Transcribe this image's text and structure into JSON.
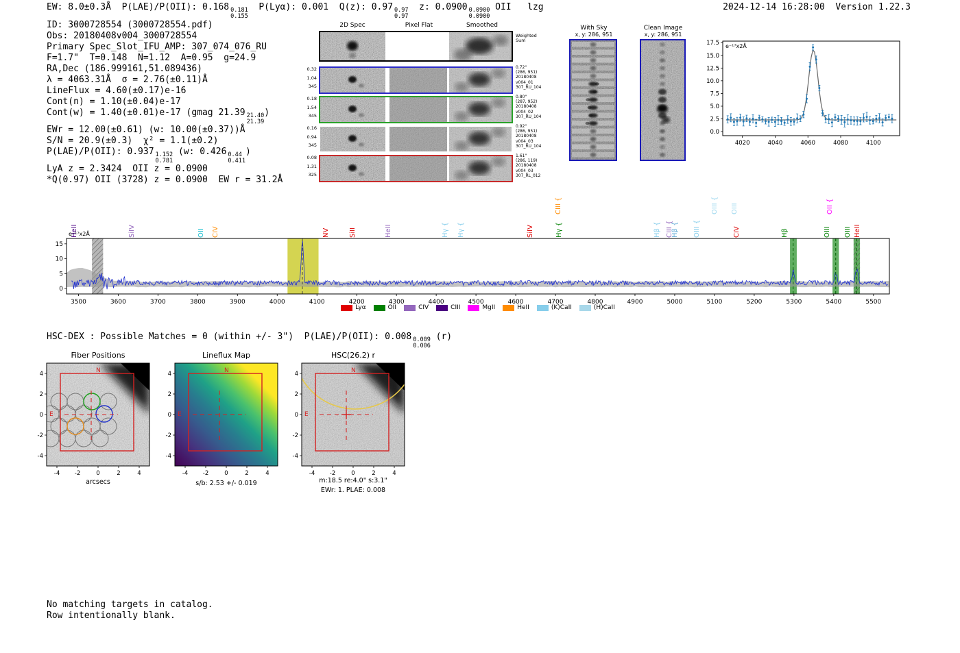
{
  "header": {
    "segments": [
      {
        "text": "EW: 8.0±0.3Å  P(LAE)/P(OII): 0.168"
      },
      {
        "sup": "0.181",
        "sub": "0.155"
      },
      {
        "text": "  P(Lyα): 0.001  Q(z): 0.97"
      },
      {
        "sup": "0.97",
        "sub": "0.97"
      },
      {
        "text": "  z: 0.0900"
      },
      {
        "sup": "0.0900",
        "sub": "0.0900"
      },
      {
        "text": " OII   lzg"
      }
    ],
    "timestamp": "2024-12-14 16:28:00  Version 1.22.3"
  },
  "info": {
    "lines": [
      [
        {
          "text": "ID: 3000728554 (3000728554.pdf)"
        }
      ],
      [
        {
          "text": "Obs: 20180408v004_3000728554"
        }
      ],
      [
        {
          "text": "Primary Spec_Slot_IFU_AMP: 307_074_076_RU"
        }
      ],
      [
        {
          "text": "F=1.7\"  T=0.148  N=1.12  A=0.95  g=24.9"
        }
      ],
      [
        {
          "text": "RA,Dec (186.999161,51.089436)"
        }
      ],
      [
        {
          "text": "λ = 4063.31Å  σ = 2.76(±0.11)Å"
        }
      ],
      [
        {
          "text": "LineFlux = 4.60(±0.17)e-16"
        }
      ],
      [
        {
          "text": "Cont(n) = 1.10(±0.04)e-17"
        }
      ],
      [
        {
          "text": "Cont(w) = 1.40(±0.01)e-17 (gmag 21.39"
        },
        {
          "sup": "21.40",
          "sub": "21.39"
        },
        {
          "text": ")"
        }
      ],
      [
        {
          "text": "EWr = 12.00(±0.61) (w: 10.00(±0.37))Å"
        }
      ],
      [
        {
          "text": "S/N = 20.9(±0.3)  χ² = 1.1(±0.2)"
        }
      ],
      [
        {
          "text": "P(LAE)/P(OII): 0.937"
        },
        {
          "sup": "1.152",
          "sub": "0.781"
        },
        {
          "text": " (w: 0.426"
        },
        {
          "sup": "0.44",
          "sub": "0.411"
        },
        {
          "text": ")"
        }
      ],
      [
        {
          "text": "LyA z = 2.3424  OII z = 0.0900"
        }
      ],
      [
        {
          "text": "*Q(0.97) OII (3728) z = 0.0900  EW r = 31.2Å"
        }
      ]
    ]
  },
  "cutouts_2d": {
    "col_headers": [
      "2D Spec",
      "Pixel Flat",
      "Smoothed"
    ],
    "weighted_label_1": "Weighted",
    "weighted_label_2": "Sum",
    "rows": [
      {
        "left": [
          "0.32",
          "1.04",
          "345"
        ],
        "border": "#2a2ac8",
        "right": [
          "0.72\"",
          "(286, 951)",
          "20180408",
          "v004_01",
          "307_RU_104"
        ]
      },
      {
        "left": [
          "0.18",
          "1.54",
          "345"
        ],
        "border": "#2aa22a",
        "right": [
          "0.80\"",
          "(287, 952)",
          "20180408",
          "v004_02",
          "307_RU_104"
        ]
      },
      {
        "left": [
          "0.16",
          "0.94",
          "345"
        ],
        "border": "none",
        "right": [
          "0.92\"",
          "(286, 951)",
          "20180408",
          "v004_03",
          "307_RU_104"
        ]
      },
      {
        "left": [
          "0.08",
          "1.31",
          "325"
        ],
        "border": "#c82a2a",
        "right": [
          "1.61\"",
          "(286, 119)",
          "20180408",
          "v004_03",
          "307_RL_012"
        ]
      }
    ]
  },
  "sky_panels": {
    "with_sky": {
      "title": "With Sky",
      "coords": "x, y: 286, 951"
    },
    "clean": {
      "title": "Clean Image",
      "coords": "x, y: 286, 951"
    }
  },
  "chart_data": [
    {
      "type": "scatter",
      "name": "emission-line-fit-zoom",
      "annotation": "e⁻¹⁷x2Å",
      "xlim": [
        4008,
        4116
      ],
      "xticks": [
        4020,
        4040,
        4060,
        4080,
        4100
      ],
      "yticks": [
        0.0,
        2.5,
        5.0,
        7.5,
        10.0,
        12.5,
        15.0,
        17.5
      ],
      "ylim": [
        -0.8,
        17.8
      ],
      "baseline": 2.3,
      "gauss": {
        "center": 4063.31,
        "sigma": 2.76,
        "amplitude": 13.8
      },
      "colors": {
        "points": "#1f77b4",
        "fit": "#666666"
      }
    },
    {
      "type": "line",
      "name": "full-spectrum",
      "annotation": "e⁻¹⁷x2Å",
      "xlim": [
        3470,
        5540
      ],
      "xticks": [
        3500,
        3600,
        3700,
        3800,
        3900,
        4000,
        4100,
        4200,
        4300,
        4400,
        4500,
        4600,
        4700,
        4800,
        4900,
        5000,
        5100,
        5200,
        5300,
        5400,
        5500
      ],
      "yticks": [
        0,
        5,
        10,
        15
      ],
      "ylim": [
        -1.8,
        16.8
      ],
      "continuum": 1.9,
      "noise_sigma": 0.8,
      "line_color": "#1f2fd0",
      "peaks": [
        {
          "center": 4063.3,
          "sigma": 2.8,
          "amplitude": 13.9
        },
        {
          "center": 5298,
          "sigma": 3,
          "amplitude": 4.2
        },
        {
          "center": 5405,
          "sigma": 3,
          "amplitude": 3.2
        },
        {
          "center": 5458,
          "sigma": 3,
          "amplitude": 5.6
        },
        {
          "center": 3552,
          "sigma": 5,
          "amplitude": 3.0
        }
      ],
      "bands": [
        {
          "x0": 3534,
          "x1": 3562,
          "color": "#aaaaaa",
          "hatch": true
        },
        {
          "x0": 4026,
          "x1": 4104,
          "color": "#cdcd32",
          "hatch": false
        },
        {
          "x0": 5290,
          "x1": 5307,
          "color": "#46a046",
          "hatch": false
        },
        {
          "x0": 5397,
          "x1": 5413,
          "color": "#46a046",
          "hatch": false
        },
        {
          "x0": 5450,
          "x1": 5466,
          "color": "#46a046",
          "hatch": true
        }
      ],
      "dashed_lines": [
        {
          "x": 4063.3,
          "color": "#444444"
        },
        {
          "x": 5298,
          "color": "#006400"
        },
        {
          "x": 5405,
          "color": "#006400"
        },
        {
          "x": 5458,
          "color": "#006400"
        }
      ],
      "legend": [
        {
          "label": "Lyα",
          "color": "#e00000"
        },
        {
          "label": "OII",
          "color": "#008000"
        },
        {
          "label": "CIV",
          "color": "#9467bd"
        },
        {
          "label": "CIII",
          "color": "#4b0082"
        },
        {
          "label": "MgII",
          "color": "#ff00ff"
        },
        {
          "label": "HeII",
          "color": "#ff8c00"
        },
        {
          "label": "(K)CaII",
          "color": "#87ceeb"
        },
        {
          "label": "(H)CaII",
          "color": "#a8d8ea"
        }
      ],
      "line_labels": [
        {
          "text": "HeII",
          "x": 3512,
          "color": "#4b0082",
          "tier": 0
        },
        {
          "text": "SiIV",
          "x": 3657,
          "color": "#9467bd",
          "tier": 0
        },
        {
          "text": "OII",
          "x": 3830,
          "color": "#17becf",
          "tier": 0
        },
        {
          "text": "CIV",
          "x": 3866,
          "color": "#ff8c00",
          "tier": 0
        },
        {
          "text": "NV",
          "x": 4145,
          "color": "#dd0000",
          "tier": 0
        },
        {
          "text": "SiII",
          "x": 4212,
          "color": "#dd0000",
          "tier": 0
        },
        {
          "text": "HeII",
          "x": 4302,
          "color": "#9467bd",
          "tier": 0
        },
        {
          "text": "Hγ {",
          "x": 4444,
          "color": "#87ceeb",
          "tier": 0
        },
        {
          "text": "Hγ {",
          "x": 4484,
          "color": "#87ceeb",
          "tier": 0
        },
        {
          "text": "SiIV",
          "x": 4659,
          "color": "#dd0000",
          "tier": 0
        },
        {
          "text": "CIII {",
          "x": 4729,
          "color": "#ff8c00",
          "tier": 1
        },
        {
          "text": "Hγ {",
          "x": 4731,
          "color": "#008000",
          "tier": 0
        },
        {
          "text": "Hβ {",
          "x": 4978,
          "color": "#87ceeb",
          "tier": 0
        },
        {
          "text": "CIII {",
          "x": 5008,
          "color": "#9467bd",
          "tier": 0
        },
        {
          "text": "Hβ {",
          "x": 5022,
          "color": "#6ab0d8",
          "tier": 0
        },
        {
          "text": "OIII {",
          "x": 5078,
          "color": "#87ceeb",
          "tier": 0
        },
        {
          "text": "OIII {",
          "x": 5123,
          "color": "#9fd8ef",
          "tier": 1
        },
        {
          "text": "OIII",
          "x": 5173,
          "color": "#9fd8ef",
          "tier": 1
        },
        {
          "text": "CIV",
          "x": 5177,
          "color": "#dd0000",
          "tier": 0
        },
        {
          "text": "Hβ",
          "x": 5298,
          "color": "#008000",
          "tier": 0
        },
        {
          "text": "OIII",
          "x": 5405,
          "color": "#008000",
          "tier": 0
        },
        {
          "text": "OII {",
          "x": 5412,
          "color": "#ff00ff",
          "tier": 1
        },
        {
          "text": "OIII",
          "x": 5458,
          "color": "#008000",
          "tier": 0
        },
        {
          "text": "HeII",
          "x": 5481,
          "color": "#dd0000",
          "tier": 0
        }
      ]
    }
  ],
  "hsc_dex": {
    "segments": [
      {
        "text": "HSC-DEX : Possible Matches = 0 (within +/- 3\")  P(LAE)/P(OII): 0.008"
      },
      {
        "sup": "0.009",
        "sub": "0.006"
      },
      {
        "text": " (r)"
      }
    ]
  },
  "panels": {
    "ticks": [
      -4,
      -2,
      0,
      2,
      4
    ],
    "fiber": {
      "title": "Fiber Positions",
      "xlabel": "arcsecs",
      "compass": {
        "n": "N",
        "e": "E"
      }
    },
    "lineflux": {
      "title": "Lineflux Map",
      "caption": "s/b: 2.53 +/- 0.019",
      "compass": {
        "n": "N",
        "e": "E"
      }
    },
    "hsc": {
      "title": "HSC(26.2) r",
      "caption1": "m:18.5  re:4.0\"  s:3.1\"",
      "caption2": "EWr: 1. PLAE: 0.008",
      "compass": {
        "n": "N",
        "e": "E"
      }
    }
  },
  "footer": {
    "lines": [
      "No matching targets in catalog.",
      "Row intentionally blank."
    ]
  }
}
